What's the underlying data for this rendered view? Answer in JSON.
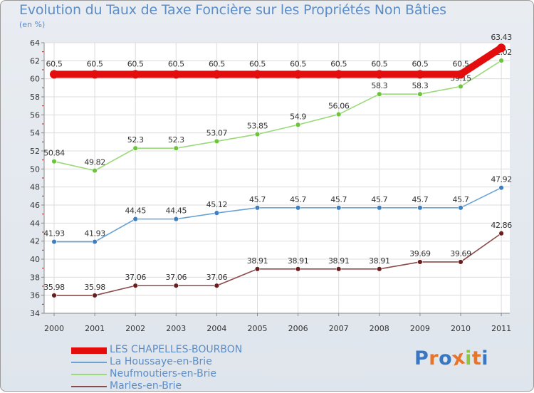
{
  "header": {
    "title": "Evolution du Taux de Taxe Foncière sur les Propriétés Non Bâties",
    "unit": "(en %)"
  },
  "logo": {
    "text": "Proxiti",
    "letters": [
      "P",
      "r",
      "o",
      "x",
      "i",
      "t",
      "i"
    ],
    "colors": [
      "#3a77c2",
      "#e8742a",
      "#3a77c2",
      "#e8742a",
      "#8dc63f",
      "#e8742a",
      "#3a77c2"
    ]
  },
  "chart_data": {
    "type": "line",
    "title": "Evolution du Taux de Taxe Foncière sur les Propriétés Non Bâties",
    "ylabel": "(en %)",
    "xlabel": "",
    "categories": [
      "2000",
      "2001",
      "2002",
      "2003",
      "2004",
      "2005",
      "2006",
      "2007",
      "2008",
      "2009",
      "2010",
      "2011"
    ],
    "ylim": [
      34,
      64
    ],
    "yticks": [
      34,
      36,
      38,
      40,
      42,
      44,
      46,
      48,
      50,
      52,
      54,
      56,
      58,
      60,
      62,
      64
    ],
    "grid": true,
    "legend_position": "bottom-left",
    "series": [
      {
        "name": "LES CHAPELLES-BOURBON",
        "color": "#e30d0d",
        "emphasis": true,
        "values": [
          60.5,
          60.5,
          60.5,
          60.5,
          60.5,
          60.5,
          60.5,
          60.5,
          60.5,
          60.5,
          60.5,
          63.43
        ],
        "labels": [
          "60.5",
          "60.5",
          "60.5",
          "60.5",
          "60.5",
          "60.5",
          "60.5",
          "60.5",
          "60.5",
          "60.5",
          "60.5",
          "63.43"
        ]
      },
      {
        "name": "La Houssaye-en-Brie",
        "color": "#6aa3d3",
        "marker": "#3d7fc1",
        "emphasis": false,
        "values": [
          41.93,
          41.93,
          44.45,
          44.45,
          45.12,
          45.7,
          45.7,
          45.7,
          45.7,
          45.7,
          45.7,
          47.92
        ],
        "labels": [
          "41.93",
          "41.93",
          "44.45",
          "44.45",
          "45.12",
          "45.7",
          "45.7",
          "45.7",
          "45.7",
          "45.7",
          "45.7",
          "47.92"
        ]
      },
      {
        "name": "Neufmoutiers-en-Brie",
        "color": "#9bd97a",
        "marker": "#6cc43a",
        "emphasis": false,
        "values": [
          50.84,
          49.82,
          52.3,
          52.3,
          53.07,
          53.85,
          54.9,
          56.06,
          58.3,
          58.3,
          59.15,
          62.02
        ],
        "labels": [
          "50.84",
          "49.82",
          "52.3",
          "52.3",
          "53.07",
          "53.85",
          "54.9",
          "56.06",
          "58.3",
          "58.3",
          "59.15",
          "62.02"
        ]
      },
      {
        "name": "Marles-en-Brie",
        "color": "#8a4b4b",
        "marker": "#6b1d1d",
        "emphasis": false,
        "values": [
          35.98,
          35.98,
          37.06,
          37.06,
          37.06,
          38.91,
          38.91,
          38.91,
          38.91,
          39.69,
          39.69,
          42.86
        ],
        "labels": [
          "35.98",
          "35.98",
          "37.06",
          "37.06",
          "37.06",
          "38.91",
          "38.91",
          "38.91",
          "38.91",
          "39.69",
          "39.69",
          "42.86"
        ]
      }
    ]
  }
}
